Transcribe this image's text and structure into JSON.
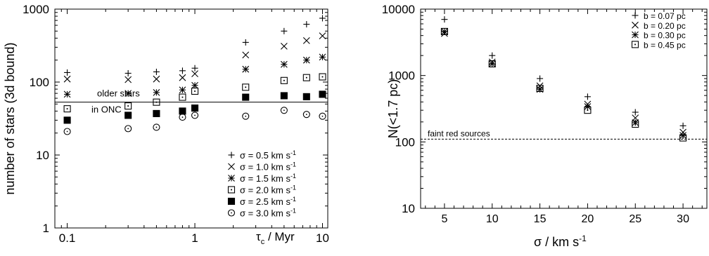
{
  "chart_data": [
    {
      "type": "scatter",
      "title": "",
      "xlabel": {
        "sym": "τ",
        "sub": "c",
        "rest": " / Myr"
      },
      "ylabel": "number of stars (3d bound)",
      "xscale": "log",
      "yscale": "log",
      "xlim": [
        0.08,
        11
      ],
      "ylim": [
        1,
        1000
      ],
      "xticks": [
        {
          "value": 0.1,
          "label": "0.1"
        },
        {
          "value": 1,
          "label": "1"
        },
        {
          "value": 10,
          "label": "10"
        }
      ],
      "yticks": [
        {
          "value": 1,
          "label": "1"
        },
        {
          "value": 10,
          "label": "10"
        },
        {
          "value": 100,
          "label": "100"
        },
        {
          "value": 1000,
          "label": "1000"
        }
      ],
      "grid": false,
      "legend": "bottom-right",
      "reference_line": {
        "y": 53,
        "style": "solid",
        "label_lines": [
          "older stars",
          "in ONC"
        ]
      },
      "x": [
        0.1,
        0.3,
        0.5,
        0.8,
        1.0,
        2.5,
        5.0,
        7.5,
        10.0
      ],
      "series": [
        {
          "name": "σ = 0.5 km s⁻¹",
          "marker": "plus",
          "values": [
            135,
            132,
            138,
            143,
            155,
            350,
            500,
            620,
            750
          ]
        },
        {
          "name": "σ = 1.0 km s⁻¹",
          "marker": "cross",
          "values": [
            110,
            108,
            110,
            115,
            130,
            235,
            310,
            370,
            430
          ]
        },
        {
          "name": "σ = 1.5 km s⁻¹",
          "marker": "asterisk",
          "values": [
            68,
            70,
            72,
            78,
            90,
            150,
            175,
            200,
            220
          ]
        },
        {
          "name": "σ = 2.0 km s⁻¹",
          "marker": "dotted-square",
          "values": [
            43,
            47,
            53,
            62,
            75,
            85,
            105,
            115,
            118
          ]
        },
        {
          "name": "σ = 2.5 km s⁻¹",
          "marker": "filled-square",
          "values": [
            30,
            35,
            37,
            40,
            44,
            62,
            65,
            63,
            68
          ]
        },
        {
          "name": "σ = 3.0 km s⁻¹",
          "marker": "dotted-circle",
          "values": [
            21,
            23,
            24,
            33,
            35,
            34,
            41,
            36,
            34
          ]
        }
      ],
      "legend_entries": [
        {
          "marker": "plus",
          "main": "σ = 0.5 km s",
          "sup": "-1"
        },
        {
          "marker": "cross",
          "main": "σ = 1.0 km s",
          "sup": "-1"
        },
        {
          "marker": "asterisk",
          "main": "σ = 1.5 km s",
          "sup": "-1"
        },
        {
          "marker": "dotted-square",
          "main": "σ = 2.0 km s",
          "sup": "-1"
        },
        {
          "marker": "filled-square",
          "main": "σ = 2.5 km s",
          "sup": "-1"
        },
        {
          "marker": "dotted-circle",
          "main": "σ = 3.0 km s",
          "sup": "-1"
        }
      ]
    },
    {
      "type": "scatter",
      "title": "",
      "xlabel": {
        "main": "σ / km s",
        "sup": "-1"
      },
      "ylabel": "N(<1.7 pc)",
      "xscale": "linear",
      "yscale": "log",
      "xlim": [
        2.5,
        32.5
      ],
      "ylim": [
        10,
        10000
      ],
      "xticks": [
        {
          "value": 5,
          "label": "5"
        },
        {
          "value": 10,
          "label": "10"
        },
        {
          "value": 15,
          "label": "15"
        },
        {
          "value": 20,
          "label": "20"
        },
        {
          "value": 25,
          "label": "25"
        },
        {
          "value": 30,
          "label": "30"
        }
      ],
      "yticks": [
        {
          "value": 10,
          "label": "10"
        },
        {
          "value": 100,
          "label": "100"
        },
        {
          "value": 1000,
          "label": "1000"
        },
        {
          "value": 10000,
          "label": "10000"
        }
      ],
      "grid": false,
      "legend": "top-right",
      "reference_line": {
        "y": 110,
        "style": "dashed",
        "label_lines": [
          "faint red sources"
        ]
      },
      "x": [
        5,
        10,
        15,
        20,
        25,
        30
      ],
      "series": [
        {
          "name": "b = 0.07 pc",
          "marker": "plus",
          "values": [
            7000,
            2000,
            900,
            480,
            280,
            175
          ]
        },
        {
          "name": "b = 0.20 pc",
          "marker": "cross",
          "values": [
            4300,
            1600,
            700,
            370,
            230,
            140
          ]
        },
        {
          "name": "b = 0.30 pc",
          "marker": "asterisk",
          "values": [
            4600,
            1500,
            620,
            340,
            195,
            125
          ]
        },
        {
          "name": "b = 0.45 pc",
          "marker": "dotted-square",
          "values": [
            4600,
            1500,
            640,
            300,
            185,
            115
          ]
        }
      ],
      "legend_entries": [
        {
          "marker": "plus",
          "main": "b = 0.07 pc"
        },
        {
          "marker": "cross",
          "main": "b = 0.20 pc"
        },
        {
          "marker": "asterisk",
          "main": "b = 0.30 pc"
        },
        {
          "marker": "dotted-square",
          "main": "b = 0.45 pc"
        }
      ]
    }
  ]
}
